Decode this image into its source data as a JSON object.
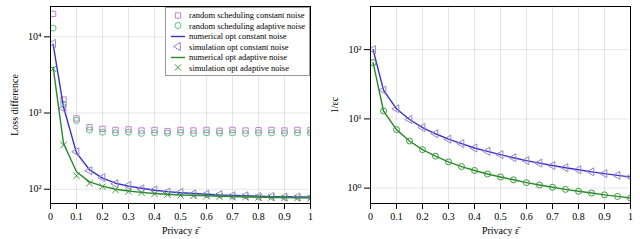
{
  "chart_data": [
    {
      "type": "line",
      "x_label": "Privacy ε̄",
      "y_label": "Loss difference",
      "x": [
        0.01,
        0.05,
        0.1,
        0.15,
        0.2,
        0.25,
        0.3,
        0.35,
        0.4,
        0.45,
        0.5,
        0.55,
        0.6,
        0.65,
        0.7,
        0.75,
        0.8,
        0.85,
        0.9,
        0.95,
        1.0
      ],
      "xlim": [
        0,
        1
      ],
      "xticks": [
        0,
        0.1,
        0.2,
        0.3,
        0.4,
        0.5,
        0.6,
        0.7,
        0.8,
        0.9,
        1
      ],
      "ylim": [
        65,
        25000
      ],
      "yticks": [
        {
          "value": 100,
          "label": "10²"
        },
        {
          "value": 1000,
          "label": "10³"
        },
        {
          "value": 10000,
          "label": "10⁴"
        }
      ],
      "log": "y",
      "grid": true,
      "legend": "upper right",
      "series": [
        {
          "name": "random scheduling constant noise",
          "type": "scatter",
          "marker": "square",
          "color": "#c77dd4",
          "values": [
            20000,
            1500,
            850,
            650,
            620,
            600,
            610,
            590,
            600,
            580,
            600,
            590,
            600,
            585,
            600,
            590,
            595,
            600,
            590,
            600,
            595
          ]
        },
        {
          "name": "random scheduling adaptive noise",
          "type": "scatter",
          "marker": "circle",
          "color": "#55c080",
          "values": [
            13000,
            1300,
            800,
            600,
            560,
            550,
            560,
            540,
            550,
            545,
            555,
            540,
            550,
            545,
            550,
            540,
            548,
            550,
            545,
            550,
            545
          ]
        },
        {
          "name": "numerical opt constant noise",
          "type": "line",
          "line_style": "solid",
          "color": "#3333cc",
          "values": [
            8000,
            1200,
            300,
            180,
            140,
            120,
            110,
            103,
            97,
            93,
            90,
            88,
            86,
            84,
            83,
            82,
            81,
            80,
            80,
            79,
            79
          ]
        },
        {
          "name": "simulation opt constant noise",
          "type": "scatter",
          "marker": "triangle-left",
          "color": "#9a7fd0",
          "values": [
            8200,
            1150,
            310,
            175,
            142,
            118,
            112,
            101,
            98,
            92,
            91,
            87,
            86,
            85,
            82,
            82,
            80,
            80,
            79,
            79,
            78
          ]
        },
        {
          "name": "numerical opt adaptive noise",
          "type": "line",
          "line_style": "solid",
          "color": "#2a8a2a",
          "values": [
            4000,
            400,
            170,
            125,
            110,
            100,
            95,
            91,
            88,
            86,
            84,
            83,
            82,
            81,
            80,
            79,
            79,
            78,
            78,
            77,
            77
          ]
        },
        {
          "name": "simulation opt adaptive noise",
          "type": "scatter",
          "marker": "x",
          "color": "#3a9a3a",
          "values": [
            3800,
            380,
            150,
            120,
            108,
            98,
            94,
            90,
            87,
            85,
            83,
            82,
            81,
            80,
            79,
            79,
            78,
            78,
            77,
            77,
            76
          ]
        }
      ]
    },
    {
      "type": "line",
      "x_label": "Privacy ε̄",
      "y_label": "1/εc",
      "x": [
        0.01,
        0.05,
        0.1,
        0.15,
        0.2,
        0.25,
        0.3,
        0.35,
        0.4,
        0.45,
        0.5,
        0.55,
        0.6,
        0.65,
        0.7,
        0.75,
        0.8,
        0.85,
        0.9,
        0.95,
        1.0
      ],
      "xlim": [
        0,
        1
      ],
      "xticks": [
        0,
        0.1,
        0.2,
        0.3,
        0.4,
        0.5,
        0.6,
        0.7,
        0.8,
        0.9,
        1
      ],
      "ylim": [
        0.6,
        420
      ],
      "yticks": [
        {
          "value": 1,
          "label": "10⁰"
        },
        {
          "value": 10,
          "label": "10¹"
        },
        {
          "value": 100,
          "label": "10²"
        }
      ],
      "log": "y",
      "grid": true,
      "series": [
        {
          "name": "numerical opt constant noise",
          "type": "line",
          "line_style": "solid",
          "color": "#3333cc",
          "values": [
            100,
            26,
            14,
            9.8,
            7.5,
            6.1,
            5.1,
            4.4,
            3.8,
            3.4,
            3.05,
            2.75,
            2.5,
            2.3,
            2.12,
            1.97,
            1.84,
            1.72,
            1.62,
            1.53,
            1.45
          ]
        },
        {
          "name": "simulation opt constant noise",
          "type": "scatter",
          "marker": "triangle-left",
          "color": "#9a7fd0",
          "values": [
            100,
            26,
            14,
            9.8,
            7.5,
            6.1,
            5.1,
            4.4,
            3.8,
            3.4,
            3.05,
            2.75,
            2.5,
            2.3,
            2.12,
            1.97,
            1.84,
            1.72,
            1.62,
            1.53,
            1.45
          ]
        },
        {
          "name": "numerical opt adaptive noise",
          "type": "line",
          "line_style": "solid",
          "color": "#2a8a2a",
          "values": [
            65,
            13,
            7,
            4.8,
            3.6,
            2.9,
            2.4,
            2.05,
            1.8,
            1.6,
            1.45,
            1.32,
            1.2,
            1.11,
            1.03,
            0.96,
            0.9,
            0.85,
            0.8,
            0.76,
            0.72
          ]
        },
        {
          "name": "simulation opt adaptive noise",
          "type": "scatter",
          "marker": "circle",
          "color": "#3a9a3a",
          "values": [
            65,
            13,
            7,
            4.8,
            3.6,
            2.9,
            2.4,
            2.05,
            1.8,
            1.6,
            1.45,
            1.32,
            1.2,
            1.11,
            1.03,
            0.96,
            0.9,
            0.85,
            0.8,
            0.76,
            0.72
          ]
        }
      ]
    }
  ]
}
